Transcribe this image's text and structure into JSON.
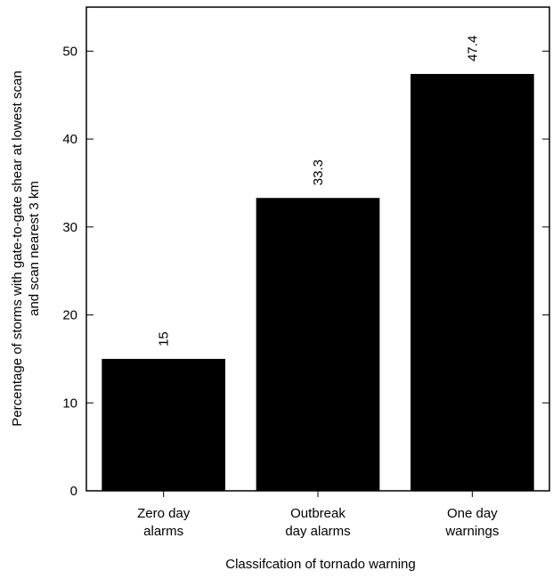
{
  "chart_data": {
    "type": "bar",
    "categories": [
      [
        "Zero day",
        "alarms"
      ],
      [
        "Outbreak",
        "day alarms"
      ],
      [
        "One day",
        "warnings"
      ]
    ],
    "values": [
      15,
      33.3,
      47.4
    ],
    "data_labels": [
      "15",
      "33.3",
      "47.4"
    ],
    "title": "",
    "xlabel": "Classifcation of tornado warning",
    "ylabel": [
      "Percentage of storms with gate-to-gate shear at lowest scan",
      "and scan nearest 3 km"
    ],
    "ylim": [
      0,
      55
    ],
    "yticks": [
      0,
      10,
      20,
      30,
      40,
      50
    ],
    "grid": false,
    "legend": "none",
    "bar_color": "#000000"
  }
}
